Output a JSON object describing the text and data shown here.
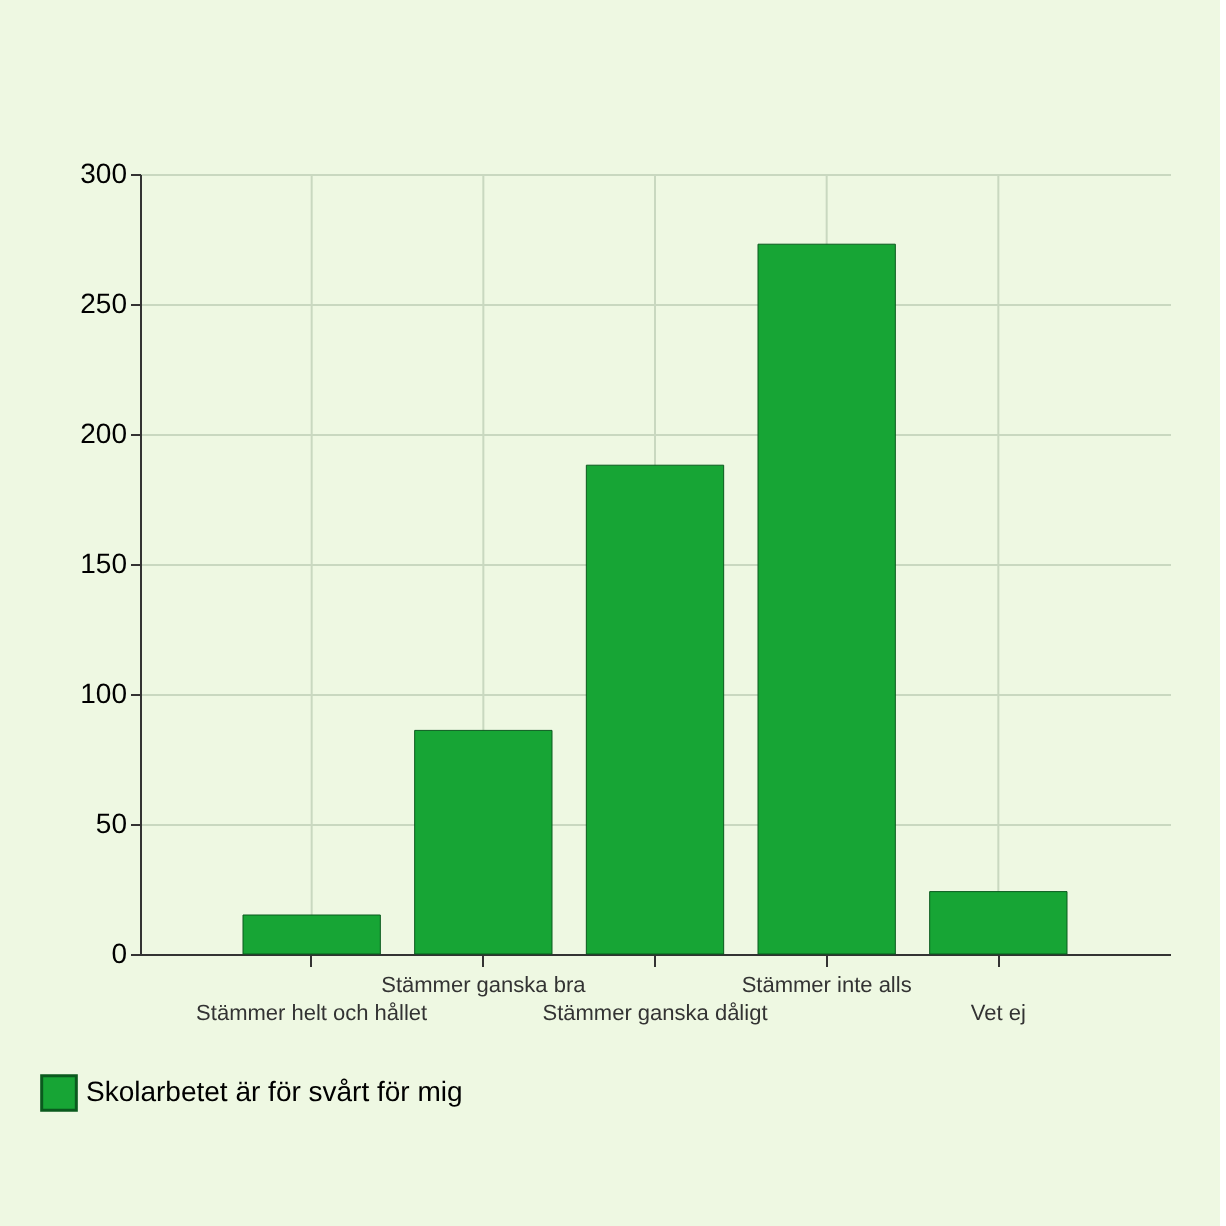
{
  "chart_data": {
    "type": "bar",
    "categories": [
      "Stämmer helt och hållet",
      "Stämmer ganska bra",
      "Stämmer ganska dåligt",
      "Stämmer inte alls",
      "Vet ej"
    ],
    "series": [
      {
        "name": "Skolarbetet är för svårt för mig",
        "color": "#17a535",
        "values": [
          15,
          86,
          188,
          273,
          24
        ]
      }
    ],
    "ylim": [
      0,
      300
    ],
    "yticks": [
      0,
      50,
      100,
      150,
      200,
      250,
      300
    ],
    "grid": true,
    "legend": "bottom left"
  }
}
